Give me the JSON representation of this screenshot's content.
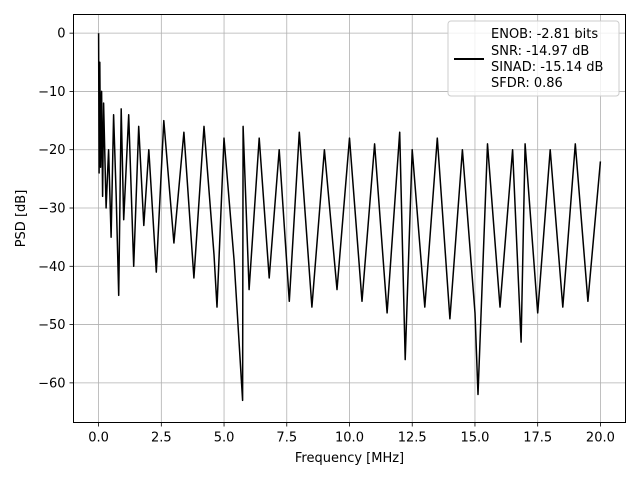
{
  "chart_data": {
    "type": "line",
    "xlabel": "Frequency [MHz]",
    "ylabel": "PSD [dB]",
    "xlim": [
      -1.0,
      21.0
    ],
    "ylim": [
      -66.8,
      3.2
    ],
    "xticks": [
      0.0,
      2.5,
      5.0,
      7.5,
      10.0,
      12.5,
      15.0,
      17.5,
      20.0
    ],
    "xtick_labels": [
      "0.0",
      "2.5",
      "5.0",
      "7.5",
      "10.0",
      "12.5",
      "15.0",
      "17.5",
      "20.0"
    ],
    "yticks": [
      0,
      -10,
      -20,
      -30,
      -40,
      -50,
      -60
    ],
    "ytick_labels": [
      "0",
      "−10",
      "−20",
      "−30",
      "−40",
      "−50",
      "−60"
    ],
    "grid": true,
    "legend_position": "top-right",
    "legend": [
      "ENOB: -2.81 bits",
      "SNR: -14.97 dB",
      "SINAD: -15.14 dB",
      "SFDR: 0.86"
    ],
    "series_color": "#000000",
    "series": [
      {
        "x": [
          0.0,
          0.02,
          0.05,
          0.08,
          0.12,
          0.16,
          0.2,
          0.3,
          0.4,
          0.5,
          0.6,
          0.7,
          0.8,
          0.9,
          1.0,
          1.2,
          1.4,
          1.6,
          1.8,
          2.0,
          2.3,
          2.6,
          3.0,
          3.4,
          3.8,
          4.2,
          4.6,
          4.72,
          5.0,
          5.4,
          5.74,
          5.76,
          6.0,
          6.4,
          6.8,
          7.2,
          7.6,
          8.0,
          8.5,
          9.0,
          9.5,
          10.0,
          10.5,
          11.0,
          11.5,
          12.0,
          12.22,
          12.5,
          13.0,
          13.5,
          14.0,
          14.5,
          15.0,
          15.12,
          15.5,
          16.0,
          16.5,
          16.84,
          17.0,
          17.5,
          18.0,
          18.5,
          19.0,
          19.5,
          20.0
        ],
        "y": [
          0.0,
          -24.0,
          -5.0,
          -23.0,
          -10.0,
          -28.0,
          -12.0,
          -30.0,
          -20.0,
          -35.0,
          -14.0,
          -28.0,
          -45.0,
          -13.0,
          -32.0,
          -14.0,
          -40.0,
          -16.0,
          -33.0,
          -20.0,
          -41.0,
          -15.0,
          -36.0,
          -17.0,
          -42.0,
          -16.0,
          -38.0,
          -47.0,
          -18.0,
          -39.0,
          -63.0,
          -16.0,
          -44.0,
          -18.0,
          -42.0,
          -20.0,
          -46.0,
          -17.0,
          -47.0,
          -20.0,
          -44.0,
          -18.0,
          -46.0,
          -19.0,
          -48.0,
          -17.0,
          -56.0,
          -20.0,
          -47.0,
          -18.0,
          -49.0,
          -20.0,
          -48.0,
          -62.0,
          -19.0,
          -47.0,
          -20.0,
          -53.0,
          -19.0,
          -48.0,
          -20.0,
          -47.0,
          -19.0,
          -46.0,
          -22.0
        ]
      }
    ]
  }
}
